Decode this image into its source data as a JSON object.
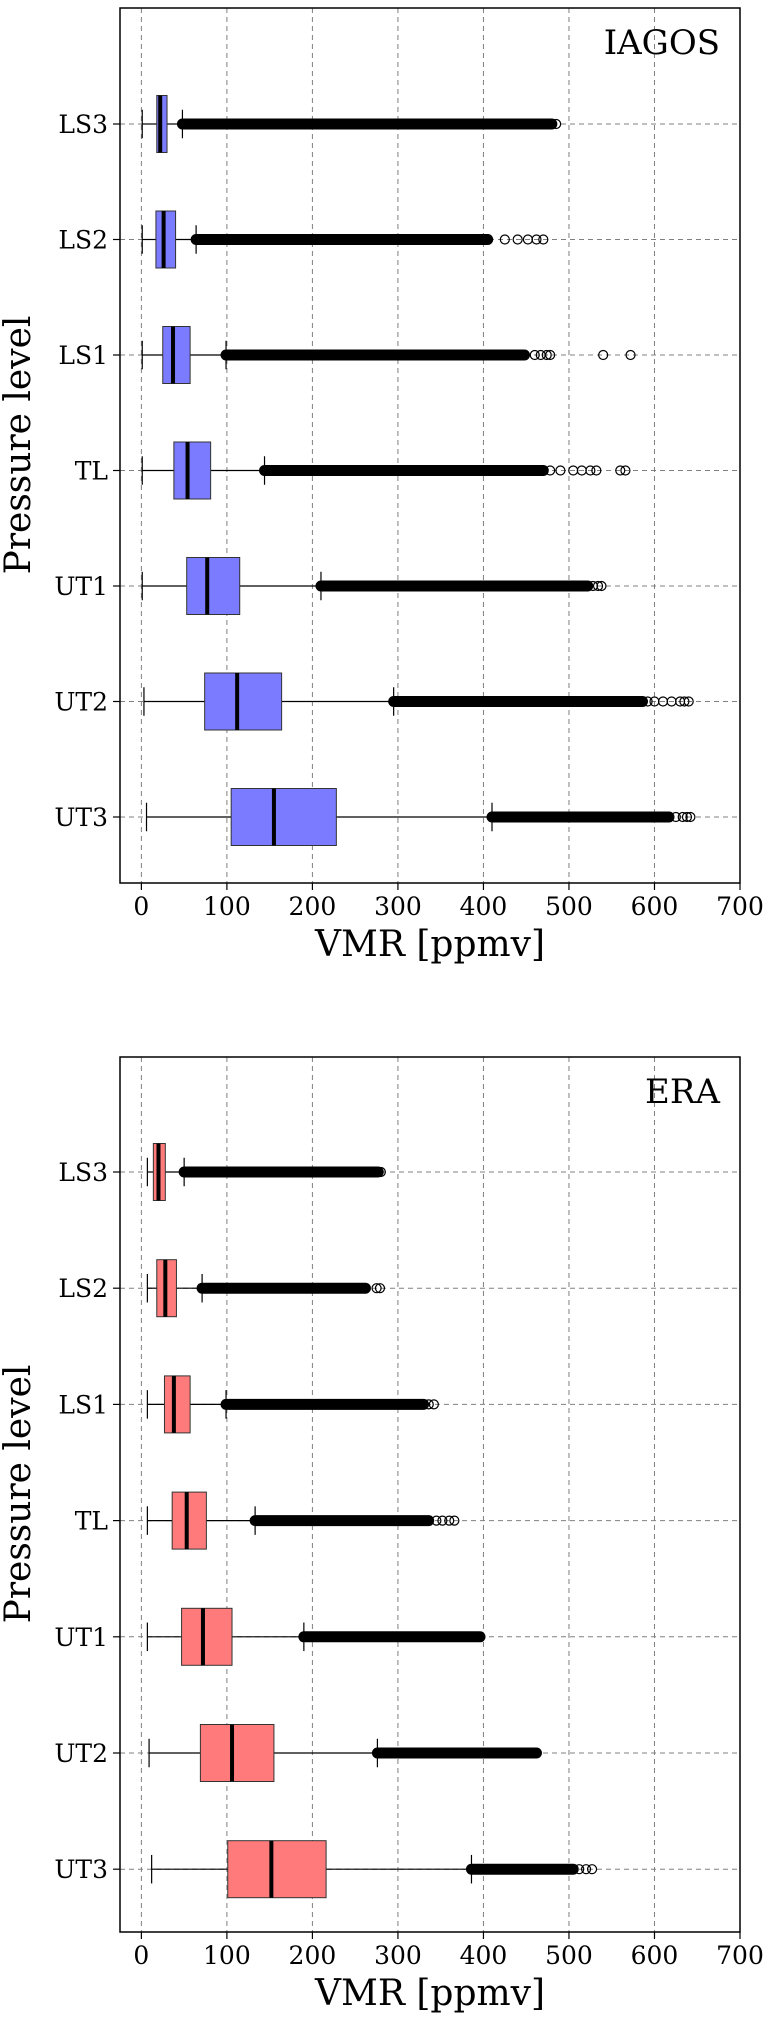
{
  "chart_data": [
    {
      "type": "boxplot",
      "orientation": "horizontal",
      "panel_label": "IAGOS",
      "xlabel": "VMR [ppmv]",
      "ylabel": "Pressure level",
      "xlim": [
        -25,
        700
      ],
      "xticks": [
        0,
        100,
        200,
        300,
        400,
        500,
        600,
        700
      ],
      "grid": true,
      "box_color": "#7b7bff",
      "categories": [
        "LS3",
        "LS2",
        "LS1",
        "TL",
        "UT1",
        "UT2",
        "UT3"
      ],
      "boxes": [
        {
          "label": "LS3",
          "whisker_low": 1,
          "q1": 18,
          "median": 22,
          "q3": 30,
          "whisker_high": 48,
          "fliers_from": 48,
          "fliers_to": 480,
          "sparse_extra": [
            485
          ]
        },
        {
          "label": "LS2",
          "whisker_low": 1,
          "q1": 17,
          "median": 26,
          "q3": 40,
          "whisker_high": 64,
          "fliers_from": 64,
          "fliers_to": 405,
          "sparse_extra": [
            425,
            440,
            452,
            462,
            470
          ]
        },
        {
          "label": "LS1",
          "whisker_low": 1,
          "q1": 25,
          "median": 37,
          "q3": 57,
          "whisker_high": 99,
          "fliers_from": 99,
          "fliers_to": 448,
          "sparse_extra": [
            460,
            467,
            474,
            478,
            540,
            572
          ]
        },
        {
          "label": "TL",
          "whisker_low": 1,
          "q1": 38,
          "median": 54,
          "q3": 81,
          "whisker_high": 144,
          "fliers_from": 144,
          "fliers_to": 470,
          "sparse_extra": [
            478,
            490,
            505,
            515,
            525,
            532,
            560,
            566
          ]
        },
        {
          "label": "UT1",
          "whisker_low": 1,
          "q1": 53,
          "median": 77,
          "q3": 115,
          "whisker_high": 210,
          "fliers_from": 210,
          "fliers_to": 522,
          "sparse_extra": [
            528,
            534,
            538
          ]
        },
        {
          "label": "UT2",
          "whisker_low": 3,
          "q1": 74,
          "median": 112,
          "q3": 164,
          "whisker_high": 295,
          "fliers_from": 295,
          "fliers_to": 586,
          "sparse_extra": [
            592,
            600,
            610,
            620,
            630,
            635,
            640
          ]
        },
        {
          "label": "UT3",
          "whisker_low": 6,
          "q1": 105,
          "median": 155,
          "q3": 228,
          "whisker_high": 410,
          "fliers_from": 410,
          "fliers_to": 617,
          "sparse_extra": [
            625,
            633,
            638,
            642
          ]
        }
      ]
    },
    {
      "type": "boxplot",
      "orientation": "horizontal",
      "panel_label": "ERA",
      "xlabel": "VMR [ppmv]",
      "ylabel": "Pressure level",
      "xlim": [
        -25,
        700
      ],
      "xticks": [
        0,
        100,
        200,
        300,
        400,
        500,
        600,
        700
      ],
      "grid": true,
      "box_color": "#ff7b7b",
      "categories": [
        "LS3",
        "LS2",
        "LS1",
        "TL",
        "UT1",
        "UT2",
        "UT3"
      ],
      "boxes": [
        {
          "label": "LS3",
          "whisker_low": 7,
          "q1": 14,
          "median": 20,
          "q3": 28,
          "whisker_high": 50,
          "fliers_from": 50,
          "fliers_to": 277,
          "sparse_extra": [
            280
          ]
        },
        {
          "label": "LS2",
          "whisker_low": 7,
          "q1": 18,
          "median": 28,
          "q3": 41,
          "whisker_high": 71,
          "fliers_from": 71,
          "fliers_to": 262,
          "sparse_extra": [
            275,
            279
          ]
        },
        {
          "label": "LS1",
          "whisker_low": 7,
          "q1": 27,
          "median": 38,
          "q3": 57,
          "whisker_high": 99,
          "fliers_from": 99,
          "fliers_to": 330,
          "sparse_extra": [
            336,
            342
          ]
        },
        {
          "label": "TL",
          "whisker_low": 7,
          "q1": 36,
          "median": 53,
          "q3": 76,
          "whisker_high": 133,
          "fliers_from": 133,
          "fliers_to": 336,
          "sparse_extra": [
            345,
            352,
            360,
            366
          ]
        },
        {
          "label": "UT1",
          "whisker_low": 7,
          "q1": 47,
          "median": 72,
          "q3": 106,
          "whisker_high": 190,
          "fliers_from": 190,
          "fliers_to": 396,
          "sparse_extra": []
        },
        {
          "label": "UT2",
          "whisker_low": 9,
          "q1": 69,
          "median": 106,
          "q3": 155,
          "whisker_high": 276,
          "fliers_from": 276,
          "fliers_to": 462,
          "sparse_extra": []
        },
        {
          "label": "UT3",
          "whisker_low": 12,
          "q1": 101,
          "median": 152,
          "q3": 216,
          "whisker_high": 386,
          "fliers_from": 386,
          "fliers_to": 505,
          "sparse_extra": [
            512,
            520,
            527
          ]
        }
      ]
    }
  ]
}
